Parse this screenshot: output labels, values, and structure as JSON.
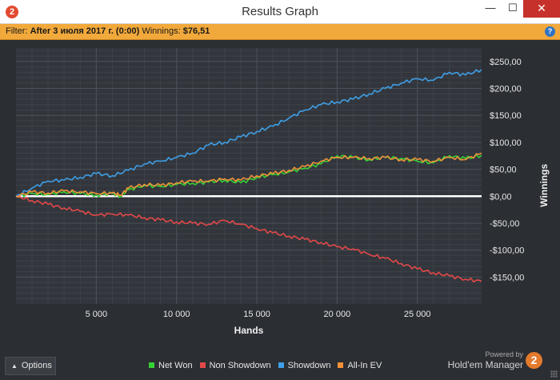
{
  "window": {
    "title": "Results Graph",
    "app_icon": "2",
    "minimize_glyph": "—",
    "maximize_glyph": "☐",
    "close_glyph": "✕"
  },
  "filter": {
    "label": "Filter:",
    "value": "After 3 июля 2017 г. (0:00)",
    "winnings_label": "Winnings:",
    "winnings_value": "$76,51",
    "help_glyph": "?"
  },
  "chart_data": {
    "type": "line",
    "xlabel": "Hands",
    "ylabel": "Winnings",
    "xlim": [
      0,
      29000
    ],
    "ylim": [
      -200,
      275
    ],
    "x_ticks": [
      5000,
      10000,
      15000,
      20000,
      25000
    ],
    "x_tick_labels": [
      "5 000",
      "10 000",
      "15 000",
      "20 000",
      "25 000"
    ],
    "y_ticks": [
      250,
      200,
      150,
      100,
      50,
      0,
      -50,
      -100,
      -150
    ],
    "y_tick_labels": [
      "$250,00",
      "$200,00",
      "$150,00",
      "$100,00",
      "$50,00",
      "$0,00",
      "-$50,00",
      "-$100,00",
      "-$150,00"
    ],
    "grid": true,
    "zero_line_color": "#ffffff",
    "series": [
      {
        "name": "Net Won",
        "color": "#35d135",
        "x": [
          0,
          1000,
          2000,
          3000,
          4000,
          5000,
          6000,
          6500,
          7000,
          8000,
          9000,
          10000,
          11000,
          12000,
          13000,
          14000,
          15000,
          16000,
          17000,
          18000,
          19000,
          20000,
          21000,
          22000,
          23000,
          24000,
          25000,
          26000,
          27000,
          28000,
          29000
        ],
        "values": [
          0,
          5,
          3,
          8,
          5,
          2,
          5,
          0,
          12,
          20,
          18,
          22,
          24,
          26,
          30,
          25,
          35,
          40,
          45,
          52,
          60,
          75,
          72,
          68,
          72,
          70,
          65,
          62,
          75,
          70,
          76
        ]
      },
      {
        "name": "Non Showdown",
        "color": "#e24848",
        "x": [
          0,
          1000,
          2000,
          3000,
          4000,
          5000,
          6000,
          7000,
          8000,
          9000,
          10000,
          11000,
          12000,
          13000,
          14000,
          15000,
          16000,
          17000,
          18000,
          19000,
          20000,
          21000,
          22000,
          23000,
          24000,
          25000,
          26000,
          27000,
          28000,
          29000
        ],
        "values": [
          0,
          -8,
          -15,
          -22,
          -28,
          -35,
          -33,
          -35,
          -40,
          -44,
          -48,
          -50,
          -52,
          -45,
          -52,
          -60,
          -68,
          -74,
          -80,
          -86,
          -94,
          -98,
          -108,
          -115,
          -125,
          -135,
          -142,
          -148,
          -154,
          -158
        ]
      },
      {
        "name": "Showdown",
        "color": "#3f9ee6",
        "x": [
          0,
          1000,
          2000,
          3000,
          4000,
          5000,
          6000,
          7000,
          8000,
          9000,
          10000,
          11000,
          12000,
          13000,
          14000,
          15000,
          16000,
          17000,
          18000,
          19000,
          20000,
          21000,
          22000,
          23000,
          24000,
          25000,
          26000,
          27000,
          28000,
          29000
        ],
        "values": [
          0,
          15,
          28,
          30,
          35,
          42,
          38,
          48,
          60,
          65,
          72,
          80,
          95,
          100,
          110,
          120,
          130,
          145,
          160,
          170,
          175,
          180,
          190,
          200,
          210,
          218,
          215,
          230,
          225,
          235
        ]
      },
      {
        "name": "All-In EV",
        "color": "#f0913a",
        "x": [
          0,
          1000,
          2000,
          3000,
          4000,
          5000,
          6000,
          6500,
          7000,
          8000,
          9000,
          10000,
          11000,
          12000,
          13000,
          14000,
          15000,
          16000,
          17000,
          18000,
          19000,
          20000,
          21000,
          22000,
          23000,
          24000,
          25000,
          26000,
          27000,
          28000,
          29000
        ],
        "values": [
          0,
          8,
          6,
          10,
          8,
          5,
          6,
          2,
          15,
          22,
          20,
          25,
          28,
          28,
          32,
          30,
          38,
          42,
          48,
          55,
          65,
          72,
          72,
          70,
          72,
          68,
          68,
          65,
          72,
          68,
          80
        ]
      }
    ]
  },
  "bottom": {
    "options_label": "Options",
    "options_icon": "caret-up-icon",
    "options_glyph": "▲",
    "powered_by": "Powered by",
    "brand_name": "Hold'em Manager",
    "brand_logo": "2"
  }
}
